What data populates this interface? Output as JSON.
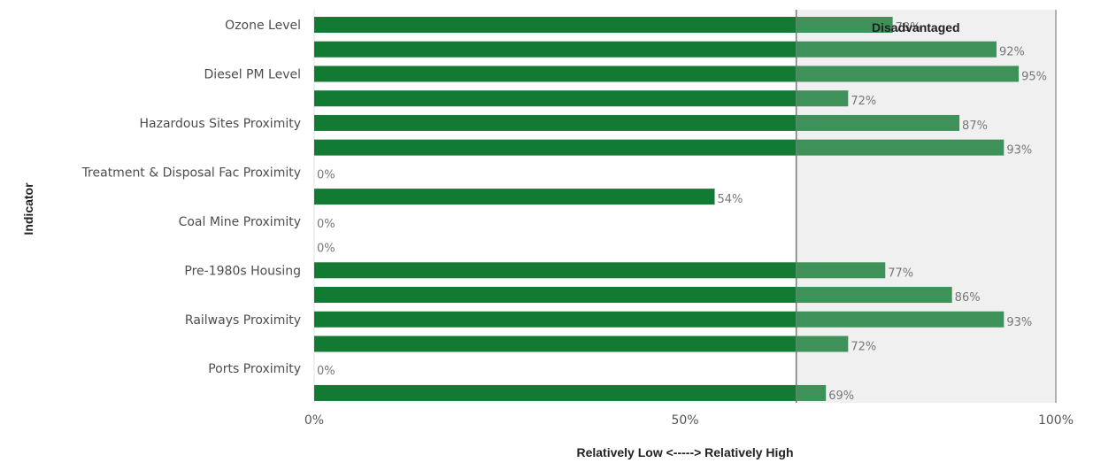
{
  "chart_data": {
    "type": "bar",
    "orientation": "horizontal",
    "ylabel": "Indicator",
    "xlabel": "Relatively Low <-----> Relatively High",
    "xlim": [
      0,
      100
    ],
    "x_ticks": [
      "0%",
      "50%",
      "100%"
    ],
    "threshold": 65,
    "threshold_label": "Disadvantaged",
    "categories": [
      "Ozone Level",
      "",
      "Diesel PM Level",
      "",
      "Hazardous Sites Proximity",
      "",
      "Treatment & Disposal Fac Proximity",
      "",
      "Coal Mine Proximity",
      "",
      "Pre-1980s Housing",
      "",
      "Railways Proximity",
      "",
      "Ports Proximity",
      ""
    ],
    "values": [
      78,
      92,
      95,
      72,
      87,
      93,
      0,
      54,
      0,
      0,
      77,
      86,
      93,
      72,
      0,
      69
    ],
    "value_labels": [
      "78%",
      "92%",
      "95%",
      "72%",
      "87%",
      "93%",
      "0%",
      "54%",
      "0%",
      "0%",
      "77%",
      "86%",
      "93%",
      "72%",
      "0%",
      "69%"
    ],
    "colors": {
      "bar_dark": "#137a33",
      "bar_light": "#3e9158",
      "band": "#f0f0f0",
      "threshold_line": "#777777",
      "band_edge": "#999999"
    },
    "legend": "none",
    "grid": false
  }
}
